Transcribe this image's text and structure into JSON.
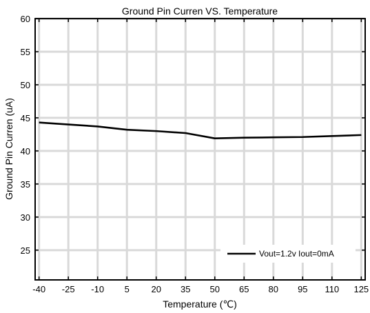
{
  "chart_data": {
    "type": "line",
    "title": "Ground Pin Curren VS. Temperature",
    "xlabel": "Temperature (℃)",
    "ylabel": "Ground Pin Curren (uA)",
    "x": [
      -40,
      -25,
      -10,
      5,
      20,
      35,
      50,
      65,
      80,
      95,
      110,
      125
    ],
    "xlim": [
      -42,
      127
    ],
    "ylim": [
      20.5,
      60
    ],
    "xticks": [
      "-40",
      "-25",
      "-10",
      "5",
      "20",
      "35",
      "50",
      "65",
      "80",
      "95",
      "110",
      "125"
    ],
    "yticks": [
      "25",
      "30",
      "35",
      "40",
      "45",
      "50",
      "55",
      "60"
    ],
    "grid": true,
    "legend_position": "bottom-right",
    "series": [
      {
        "name": "Vout=1.2v  Iout=0mA",
        "color": "#000000",
        "values": [
          44.3,
          44.0,
          43.7,
          43.2,
          43.0,
          42.7,
          41.9,
          42.0,
          42.05,
          42.1,
          42.25,
          42.4
        ]
      }
    ]
  }
}
